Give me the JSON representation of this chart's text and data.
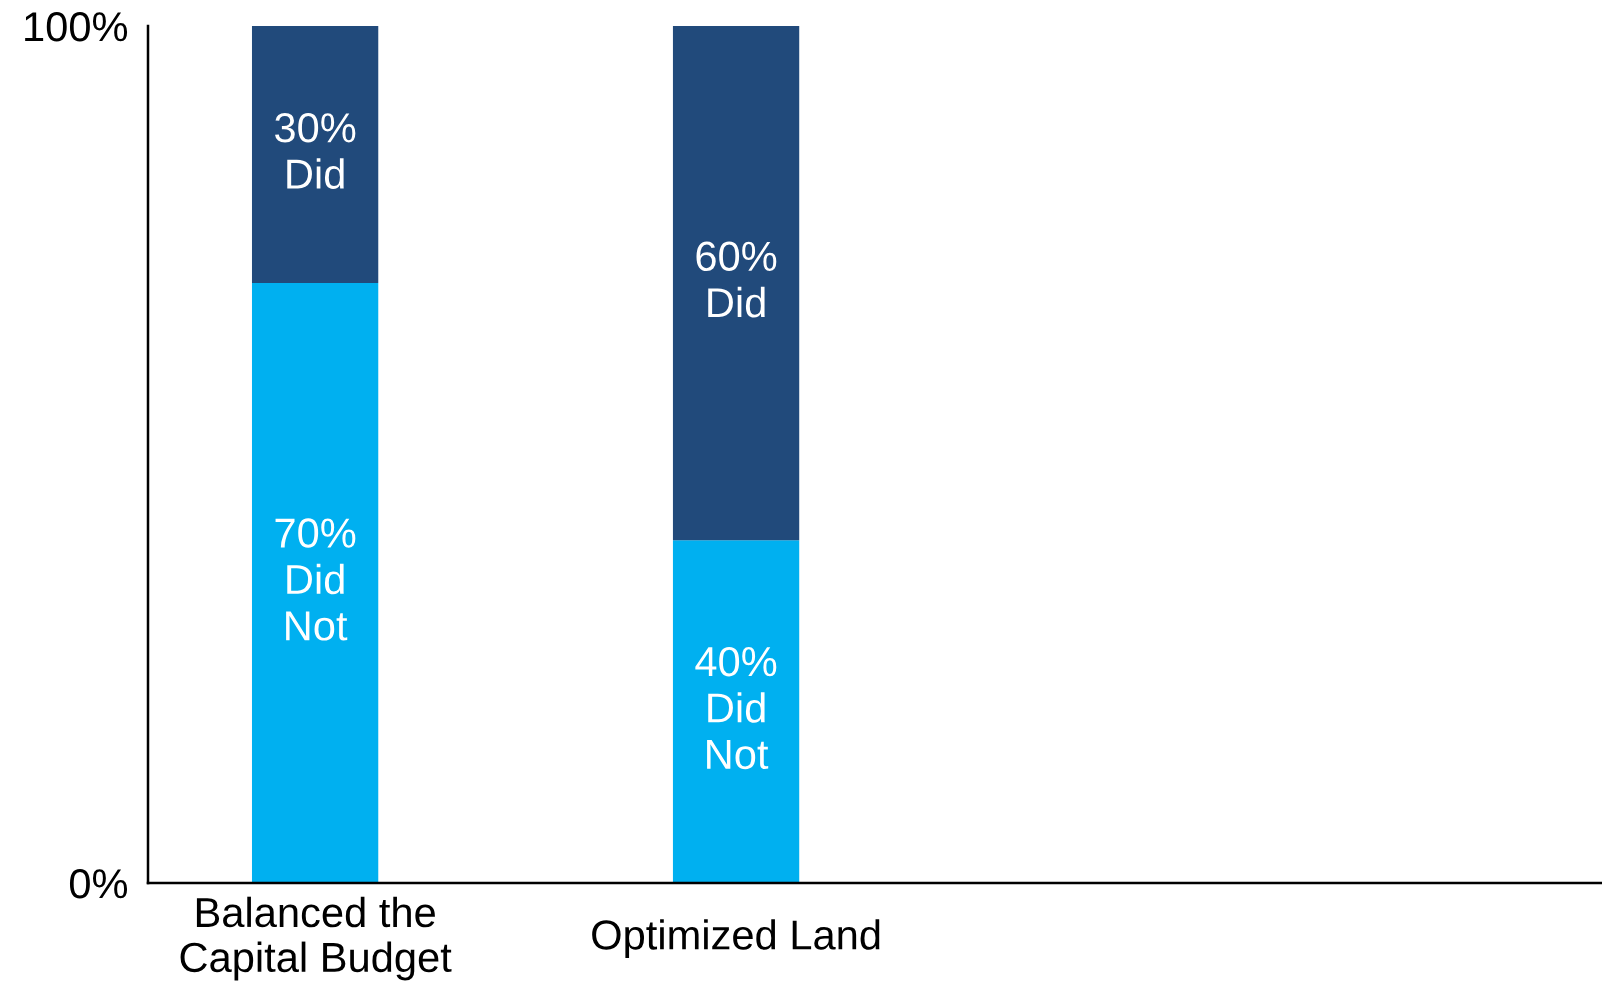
{
  "chart_data": {
    "type": "bar",
    "stacked": true,
    "categories": [
      "Balanced the\nCapital Budget",
      "Optimized Land"
    ],
    "series": [
      {
        "color": "#00b0f0",
        "values": [
          70,
          40
        ],
        "value_labels": [
          "70%\nDid\nNot",
          "40%\nDid\nNot"
        ]
      },
      {
        "color": "#214a7b",
        "values": [
          30,
          60
        ],
        "value_labels": [
          "30%\nDid",
          "60%\nDid"
        ]
      }
    ],
    "ylim": [
      0,
      100
    ],
    "yticks": [
      {
        "value": 0,
        "label": "0%"
      },
      {
        "value": 100,
        "label": "100%"
      }
    ]
  }
}
